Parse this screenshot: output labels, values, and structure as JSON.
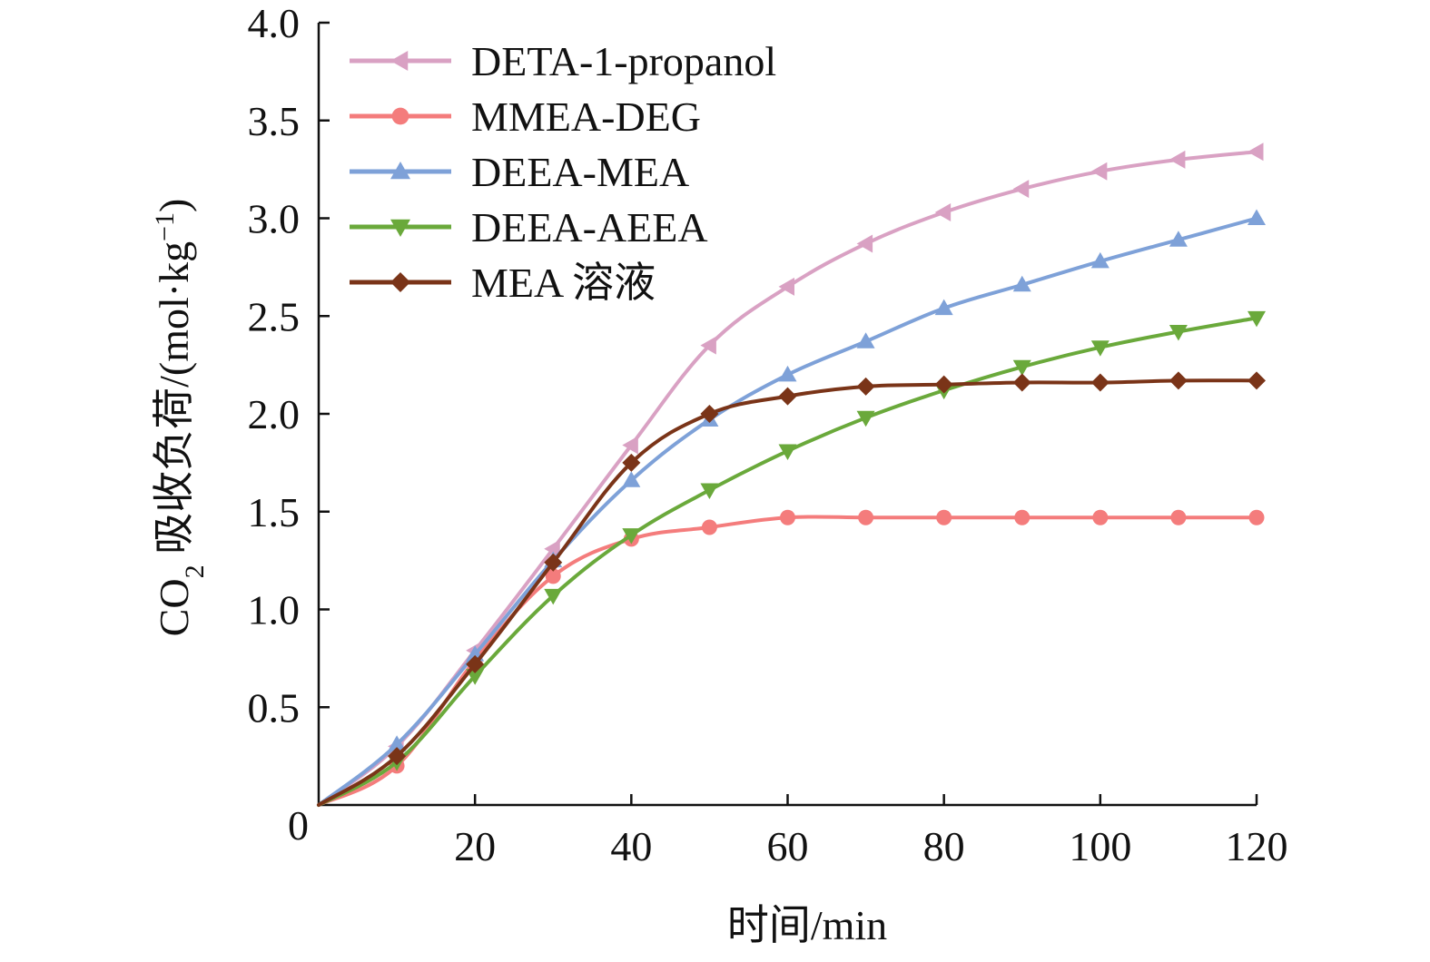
{
  "chart_data": {
    "type": "line",
    "title": "",
    "xlabel": "时间/min",
    "ylabel": {
      "prefix": "CO",
      "sub": "2",
      "middle": " 吸收负荷/(mol·kg",
      "sup": "−1",
      "suffix": ")"
    },
    "xlim": [
      0,
      120
    ],
    "ylim": [
      0,
      4.0
    ],
    "x_ticks": [
      20,
      40,
      60,
      80,
      100,
      120
    ],
    "x_tick_labels": [
      "20",
      "40",
      "60",
      "80",
      "100",
      "120"
    ],
    "y_ticks": [
      0,
      0.5,
      1.0,
      1.5,
      2.0,
      2.5,
      3.0,
      3.5,
      4.0
    ],
    "y_tick_labels": [
      "0",
      "0.5",
      "1.0",
      "1.5",
      "2.0",
      "2.5",
      "3.0",
      "3.5",
      "4.0"
    ],
    "grid": false,
    "legend_position": "top-left",
    "x": [
      0,
      10,
      20,
      30,
      40,
      50,
      60,
      70,
      80,
      90,
      100,
      110,
      120
    ],
    "series": [
      {
        "name": "DETA-1-propanol",
        "color": "#d9a1c3",
        "marker": "triangle-left",
        "values": [
          0,
          0.3,
          0.79,
          1.31,
          1.84,
          2.35,
          2.65,
          2.87,
          3.03,
          3.15,
          3.24,
          3.3,
          3.34
        ]
      },
      {
        "name": "MMEA-DEG",
        "color": "#f47c7c",
        "marker": "circle",
        "values": [
          0,
          0.2,
          0.74,
          1.17,
          1.36,
          1.42,
          1.47,
          1.47,
          1.47,
          1.47,
          1.47,
          1.47,
          1.47
        ]
      },
      {
        "name": "DEEA-MEA",
        "color": "#7ea1d8",
        "marker": "triangle-up",
        "values": [
          0,
          0.31,
          0.77,
          1.25,
          1.66,
          1.97,
          2.2,
          2.37,
          2.54,
          2.66,
          2.78,
          2.89,
          3.0
        ]
      },
      {
        "name": "DEEA-AEEA",
        "color": "#6aa93b",
        "marker": "triangle-down",
        "values": [
          0,
          0.22,
          0.66,
          1.07,
          1.38,
          1.61,
          1.81,
          1.98,
          2.12,
          2.24,
          2.34,
          2.42,
          2.49
        ]
      },
      {
        "name": "MEA 溶液",
        "color": "#7a3418",
        "marker": "diamond",
        "values": [
          0,
          0.25,
          0.72,
          1.24,
          1.75,
          2.0,
          2.09,
          2.14,
          2.15,
          2.16,
          2.16,
          2.17,
          2.17
        ]
      }
    ]
  }
}
